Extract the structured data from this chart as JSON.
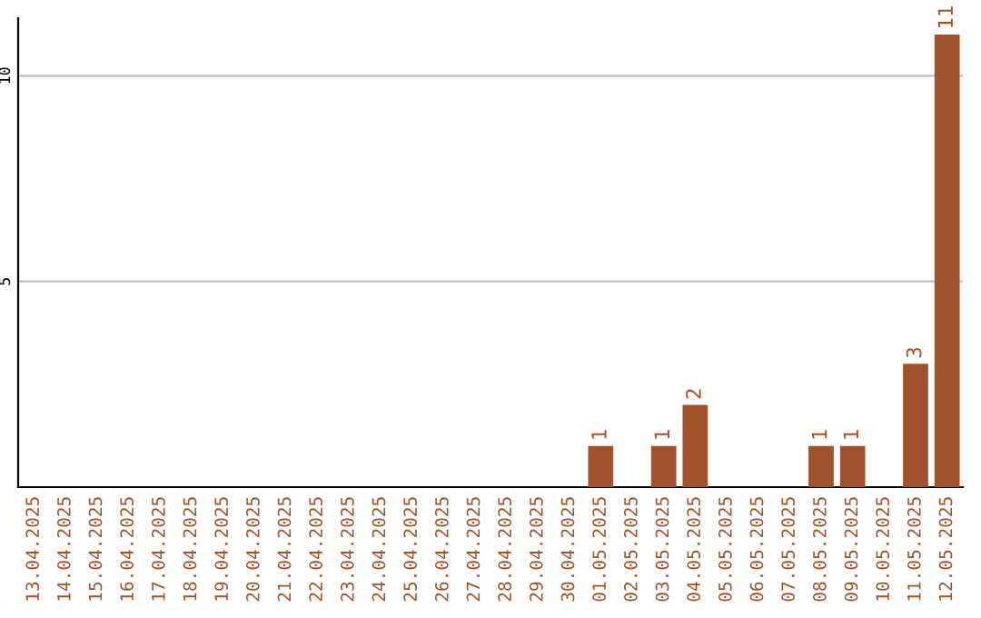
{
  "chart_data": {
    "type": "bar",
    "categories": [
      "13.04.2025",
      "14.04.2025",
      "15.04.2025",
      "16.04.2025",
      "17.04.2025",
      "18.04.2025",
      "19.04.2025",
      "20.04.2025",
      "21.04.2025",
      "22.04.2025",
      "23.04.2025",
      "24.04.2025",
      "25.04.2025",
      "26.04.2025",
      "27.04.2025",
      "28.04.2025",
      "29.04.2025",
      "30.04.2025",
      "01.05.2025",
      "02.05.2025",
      "03.05.2025",
      "04.05.2025",
      "05.05.2025",
      "06.05.2025",
      "07.05.2025",
      "08.05.2025",
      "09.05.2025",
      "10.05.2025",
      "11.05.2025",
      "12.05.2025"
    ],
    "values": [
      0,
      0,
      0,
      0,
      0,
      0,
      0,
      0,
      0,
      0,
      0,
      0,
      0,
      0,
      0,
      0,
      0,
      0,
      1,
      0,
      1,
      2,
      0,
      0,
      0,
      1,
      1,
      0,
      3,
      11
    ],
    "value_labels": [
      null,
      null,
      null,
      null,
      null,
      null,
      null,
      null,
      null,
      null,
      null,
      null,
      null,
      null,
      null,
      null,
      null,
      null,
      "1",
      null,
      "1",
      "2",
      null,
      null,
      null,
      "1",
      "1",
      null,
      "3",
      "11"
    ],
    "color": "#a0522d",
    "ylim": [
      0,
      11.4
    ],
    "yticks": [
      5,
      10
    ],
    "grid": "y"
  }
}
